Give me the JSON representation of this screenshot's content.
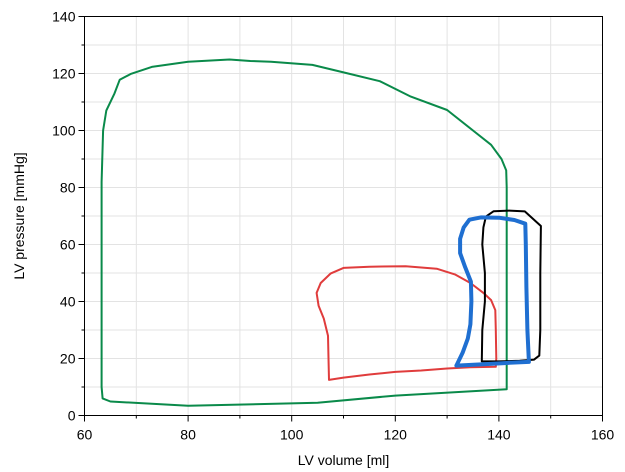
{
  "chart_data": {
    "type": "line",
    "title": "",
    "xlabel": "LV volume [ml]",
    "ylabel": "LV pressure [mmHg]",
    "xlim": [
      60,
      160
    ],
    "ylim": [
      0,
      140
    ],
    "x_ticks": [
      60,
      80,
      100,
      120,
      140,
      160
    ],
    "y_ticks": [
      0,
      20,
      40,
      60,
      80,
      100,
      120,
      140
    ],
    "grid": true,
    "legend": "none",
    "series": [
      {
        "color": "#0a8a4a",
        "width": 2,
        "points": [
          [
            141.5,
            9.2
          ],
          [
            120,
            7
          ],
          [
            105,
            4.5
          ],
          [
            80,
            3.4
          ],
          [
            65,
            4.9
          ],
          [
            63.5,
            6
          ],
          [
            63.3,
            10
          ],
          [
            63.3,
            40
          ],
          [
            63.3,
            82
          ],
          [
            63.6,
            100
          ],
          [
            64.2,
            107
          ],
          [
            65.8,
            113
          ],
          [
            66.8,
            117.8
          ],
          [
            69,
            119.9
          ],
          [
            73,
            122.3
          ],
          [
            80,
            124.1
          ],
          [
            88,
            124.9
          ],
          [
            92,
            124.4
          ],
          [
            96,
            124.1
          ],
          [
            104,
            123
          ],
          [
            110,
            120.4
          ],
          [
            117,
            117.3
          ],
          [
            123,
            111.9
          ],
          [
            130,
            107.2
          ],
          [
            135,
            100
          ],
          [
            138.5,
            95
          ],
          [
            140.5,
            90
          ],
          [
            141.4,
            86
          ],
          [
            141.5,
            80
          ],
          [
            141.5,
            60
          ],
          [
            141.5,
            30
          ],
          [
            141.5,
            9.2
          ]
        ]
      },
      {
        "color": "#e03c3c",
        "width": 2,
        "points": [
          [
            107.2,
            12.5
          ],
          [
            110,
            13.3
          ],
          [
            115,
            14.4
          ],
          [
            120,
            15.3
          ],
          [
            125,
            15.8
          ],
          [
            130,
            16.5
          ],
          [
            134.5,
            16.9
          ],
          [
            139.4,
            17.1
          ],
          [
            139.5,
            20
          ],
          [
            139.4,
            30
          ],
          [
            139.3,
            37
          ],
          [
            138.5,
            40.5
          ],
          [
            137,
            43
          ],
          [
            134.5,
            46.5
          ],
          [
            131.5,
            49.5
          ],
          [
            128,
            51.5
          ],
          [
            122,
            52.4
          ],
          [
            115,
            52.2
          ],
          [
            110,
            51.8
          ],
          [
            107.5,
            49.8
          ],
          [
            105.6,
            46.5
          ],
          [
            104.8,
            43
          ],
          [
            105.2,
            38.5
          ],
          [
            106.2,
            34
          ],
          [
            107,
            28
          ],
          [
            107.1,
            20
          ],
          [
            107.2,
            12.5
          ]
        ]
      },
      {
        "color": "#000000",
        "width": 2,
        "points": [
          [
            136.7,
            19
          ],
          [
            136.8,
            30
          ],
          [
            137.3,
            40
          ],
          [
            137.3,
            50
          ],
          [
            136.8,
            60
          ],
          [
            137,
            66
          ],
          [
            137.5,
            69.8
          ],
          [
            139,
            71.7
          ],
          [
            142,
            71.9
          ],
          [
            145,
            71.6
          ],
          [
            147.2,
            68
          ],
          [
            148.1,
            66.5
          ],
          [
            148,
            50
          ],
          [
            148,
            30
          ],
          [
            147.8,
            21
          ],
          [
            146.8,
            19.6
          ],
          [
            144,
            19.2
          ],
          [
            140,
            19
          ],
          [
            136.7,
            19
          ]
        ]
      },
      {
        "color": "#1f6fd1",
        "width": 4,
        "points": [
          [
            131.8,
            17.5
          ],
          [
            133,
            22
          ],
          [
            134,
            27
          ],
          [
            134.5,
            32
          ],
          [
            134.7,
            40
          ],
          [
            134.6,
            47
          ],
          [
            133.5,
            52
          ],
          [
            132.5,
            57
          ],
          [
            132.5,
            62
          ],
          [
            133.2,
            66
          ],
          [
            134.3,
            68.7
          ],
          [
            136.5,
            69.5
          ],
          [
            140,
            69.4
          ],
          [
            143,
            68.6
          ],
          [
            145.1,
            67.3
          ],
          [
            145.2,
            60
          ],
          [
            145.3,
            45
          ],
          [
            145.5,
            30
          ],
          [
            145.8,
            18.8
          ],
          [
            142,
            18.5
          ],
          [
            137,
            18
          ],
          [
            131.8,
            17.5
          ]
        ]
      }
    ]
  }
}
